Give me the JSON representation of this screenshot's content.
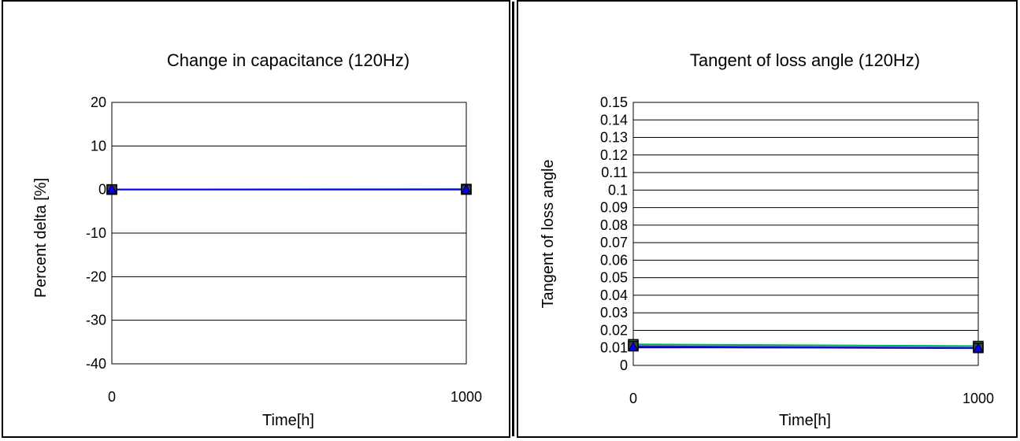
{
  "chart_data": [
    {
      "type": "line",
      "title": "Change in capacitance (120Hz)",
      "xlabel": "Time[h]",
      "ylabel": "Percent delta [%]",
      "x": [
        0,
        1000
      ],
      "xlim": [
        0,
        1000
      ],
      "ylim": [
        -40,
        20
      ],
      "yticks": [
        20,
        10,
        0,
        -10,
        -20,
        -30,
        -40
      ],
      "xticks": [
        0,
        1000
      ],
      "grid": true,
      "series": [
        {
          "values": [
            0,
            0.1
          ],
          "color": "#00b050",
          "marker": "square"
        },
        {
          "values": [
            0,
            0
          ],
          "color": "#404040",
          "marker": "square"
        },
        {
          "values": [
            0,
            0
          ],
          "color": "#0000ff",
          "marker": "triangle"
        }
      ]
    },
    {
      "type": "line",
      "title": "Tangent of loss angle (120Hz)",
      "xlabel": "Time[h]",
      "ylabel": "Tangent of loss angle",
      "x": [
        0,
        1000
      ],
      "xlim": [
        0,
        1000
      ],
      "ylim": [
        0,
        0.15
      ],
      "yticks": [
        "0.15",
        "0.14",
        "0.13",
        "0.12",
        "0.11",
        "0.1",
        "0.09",
        "0.08",
        "0.07",
        "0.06",
        "0.05",
        "0.04",
        "0.03",
        "0.02",
        "0.01",
        "0"
      ],
      "xticks": [
        0,
        1000
      ],
      "grid": true,
      "series": [
        {
          "values": [
            0.012,
            0.011
          ],
          "color": "#00b050",
          "marker": "square"
        },
        {
          "values": [
            0.011,
            0.01
          ],
          "color": "#404040",
          "marker": "square"
        },
        {
          "values": [
            0.0105,
            0.0098
          ],
          "color": "#0000ff",
          "marker": "triangle"
        }
      ]
    }
  ]
}
